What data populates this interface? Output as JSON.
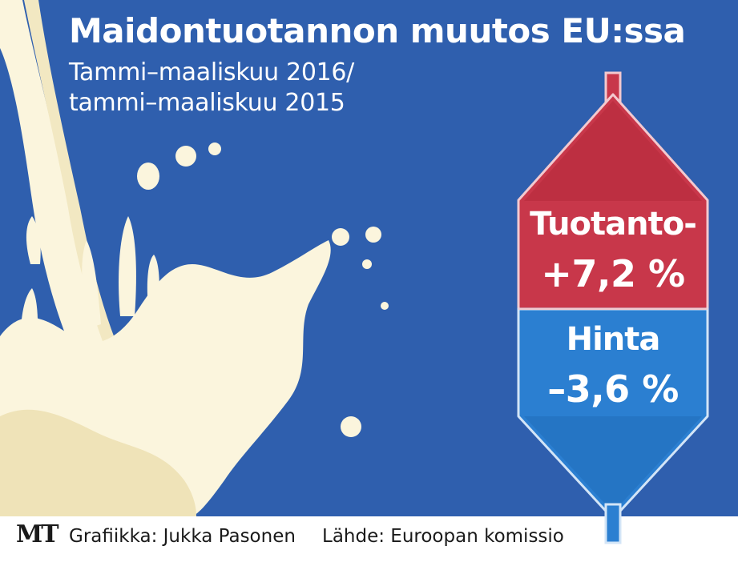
{
  "title": "Maidontuotannon muutos EU:ssa",
  "subtitle": {
    "line1": "Tammi–maaliskuu 2016/",
    "line2": "tammi–maaliskuu 2015"
  },
  "production": {
    "label": "Tuotanto-",
    "value": "+7,2 %",
    "color": "#c8374a"
  },
  "price": {
    "label": "Hinta",
    "value": "–3,6 %",
    "color": "#2b7fd1"
  },
  "footer": {
    "logo": "MT",
    "credit": "Grafiikka: Jukka Pasonen",
    "source": "Lähde: Euroopan komissio"
  },
  "colors": {
    "background": "#2f5fae",
    "milk": "#fbf5dd"
  }
}
